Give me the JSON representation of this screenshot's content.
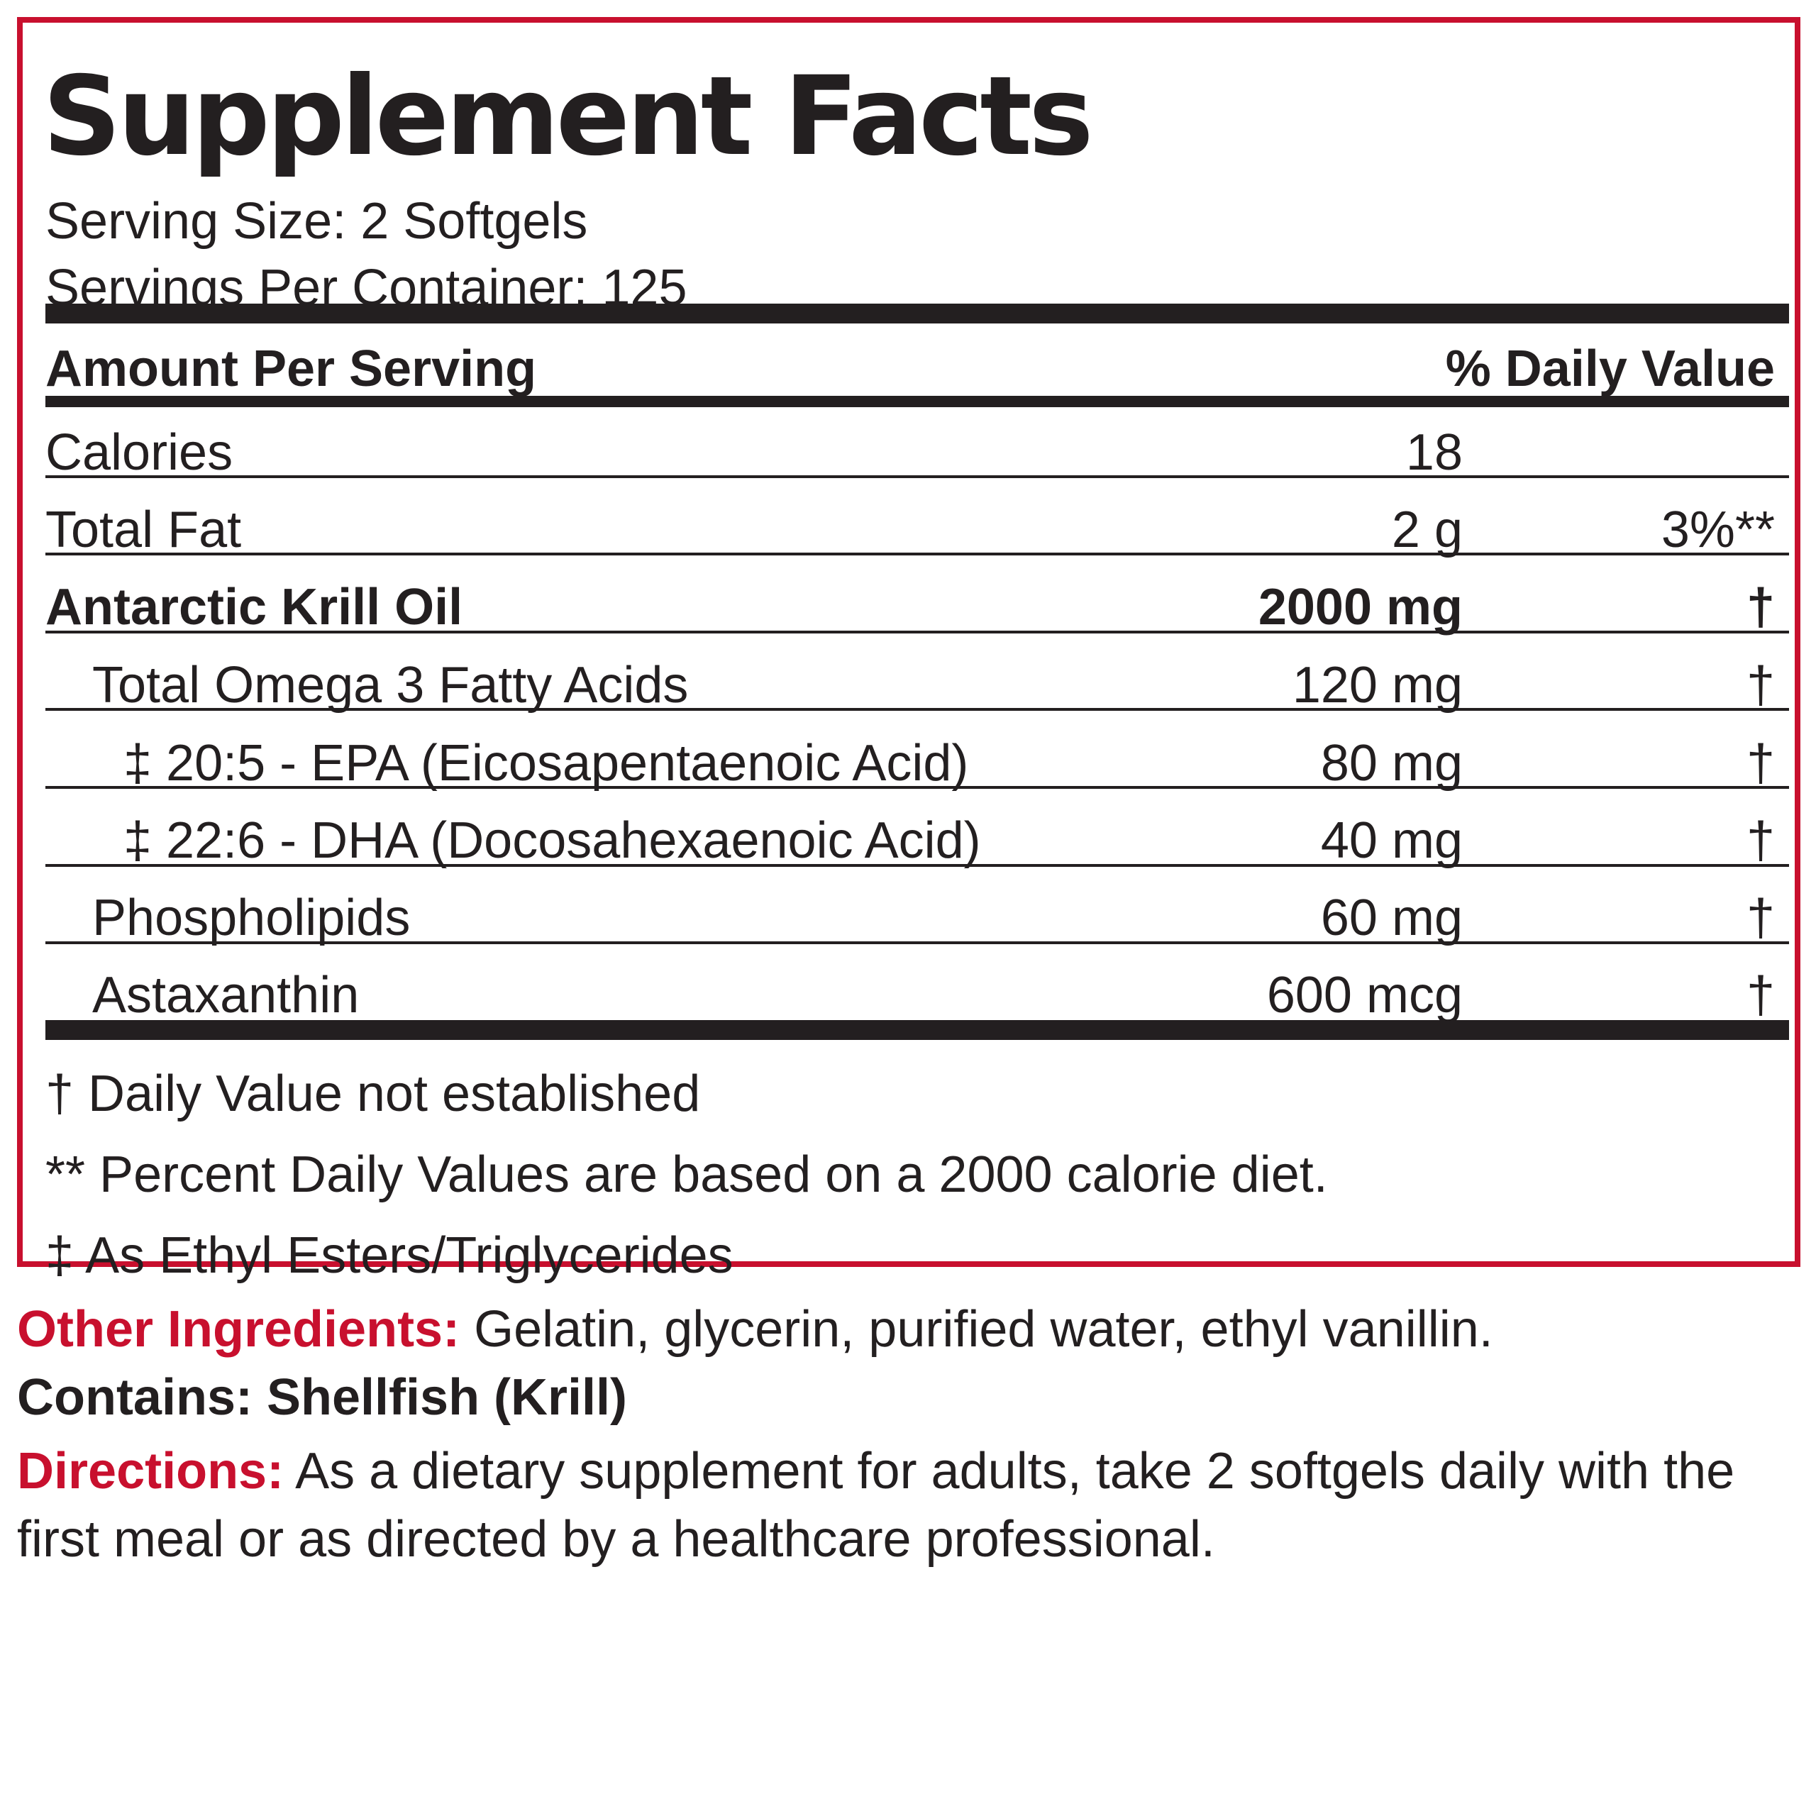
{
  "panel": {
    "title": "Supplement Facts",
    "serving_size": "Serving Size: 2 Softgels",
    "servings_per_container": "Servings Per Container: 125",
    "header": {
      "amount_per_serving": "Amount Per Serving",
      "daily_value": "% Daily Value"
    },
    "rows": [
      {
        "name": "Calories",
        "amount": "18",
        "dv": ""
      },
      {
        "name": "Total Fat",
        "amount": "2 g",
        "dv": "3%**"
      },
      {
        "name": "Antarctic Krill Oil",
        "amount": "2000 mg",
        "dv": "†"
      },
      {
        "name": "Total Omega 3 Fatty Acids",
        "amount": "120 mg",
        "dv": "†"
      },
      {
        "name": "‡ 20:5 - EPA (Eicosapentaenoic Acid)",
        "amount": "80 mg",
        "dv": "†"
      },
      {
        "name": "‡ 22:6 - DHA (Docosahexaenoic Acid)",
        "amount": "40 mg",
        "dv": "†"
      },
      {
        "name": "Phospholipids",
        "amount": "60 mg",
        "dv": "†"
      },
      {
        "name": "Astaxanthin",
        "amount": "600 mcg",
        "dv": "†"
      }
    ],
    "footnotes": [
      "† Daily Value not established",
      "** Percent Daily Values are based on a 2000 calorie diet.",
      "‡ As Ethyl Esters/Triglycerides"
    ]
  },
  "other_ingredients": {
    "label": "Other Ingredients:",
    "text": " Gelatin, glycerin, purified water, ethyl vanillin."
  },
  "contains": {
    "label": "Contains: Shellfish (Krill)"
  },
  "directions": {
    "label": "Directions:",
    "text": " As a dietary supplement for adults, take 2 softgels daily with the first meal or as directed by a healthcare professional."
  },
  "colors": {
    "accent_red": "#c8102e",
    "text": "#231f20"
  }
}
